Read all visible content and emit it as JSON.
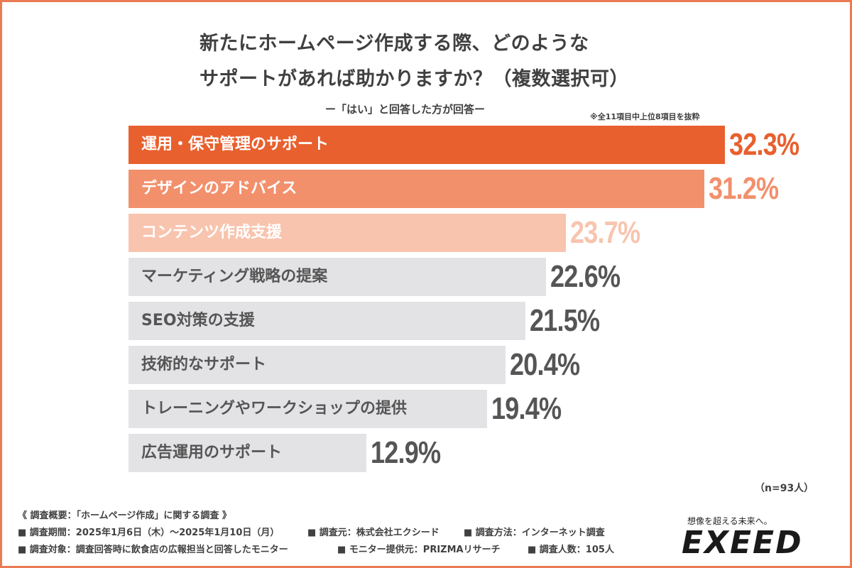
{
  "title": {
    "line1": "新たにホームページ作成する際、どのような",
    "line2": "サポートがあれば助かりますか？（複数選択可）"
  },
  "subtitle": "ー「はい」と回答した方が回答ー",
  "note": "※全11項目中上位8項目を抜粋",
  "n_label": "（n=93人）",
  "colors": {
    "bar1": "#e8602e",
    "bar2": "#f2906c",
    "bar3": "#f8c4ae",
    "bar_gray": "#e3e3e6",
    "value1": "#e8602e",
    "value2": "#f2906c",
    "value3": "#f8c4ae",
    "value_gray": "#555555",
    "label_light": "#ffffff",
    "label_gray": "#555555"
  },
  "chart_data": {
    "type": "bar",
    "orientation": "horizontal",
    "title": "新たにホームページ作成する際、どのようなサポートがあれば助かりますか？（複数選択可）",
    "categories": [
      "運用・保守管理のサポート",
      "デザインのアドバイス",
      "コンテンツ作成支援",
      "マーケティング戦略の提案",
      "SEO対策の支援",
      "技術的なサポート",
      "トレーニングやワークショップの提供",
      "広告運用のサポート"
    ],
    "values": [
      32.3,
      31.2,
      23.7,
      22.6,
      21.5,
      20.4,
      19.4,
      12.9
    ],
    "value_labels": [
      "32.3%",
      "31.2%",
      "23.7%",
      "22.6%",
      "21.5%",
      "20.4%",
      "19.4%",
      "12.9%"
    ],
    "unit": "%",
    "xlim": [
      0,
      32.3
    ]
  },
  "survey": {
    "header": "《 調査概要：「ホームページ作成」に関する調査 》",
    "period": "■ 調査期間：2025年1月6日（木）〜2025年1月10日（月）",
    "organizer": "■ 調査元：株式会社エクシード",
    "method": "■ 調査方法：インターネット調査",
    "target": "■ 調査対象：調査回答時に飲食店の広報担当と回答したモニター",
    "provider": "■ モニター提供元：PRIZMAリサーチ",
    "count": "■ 調査人数：105人"
  },
  "logo": {
    "tagline": "想像を超える未来へ。",
    "word": "EXEED"
  }
}
